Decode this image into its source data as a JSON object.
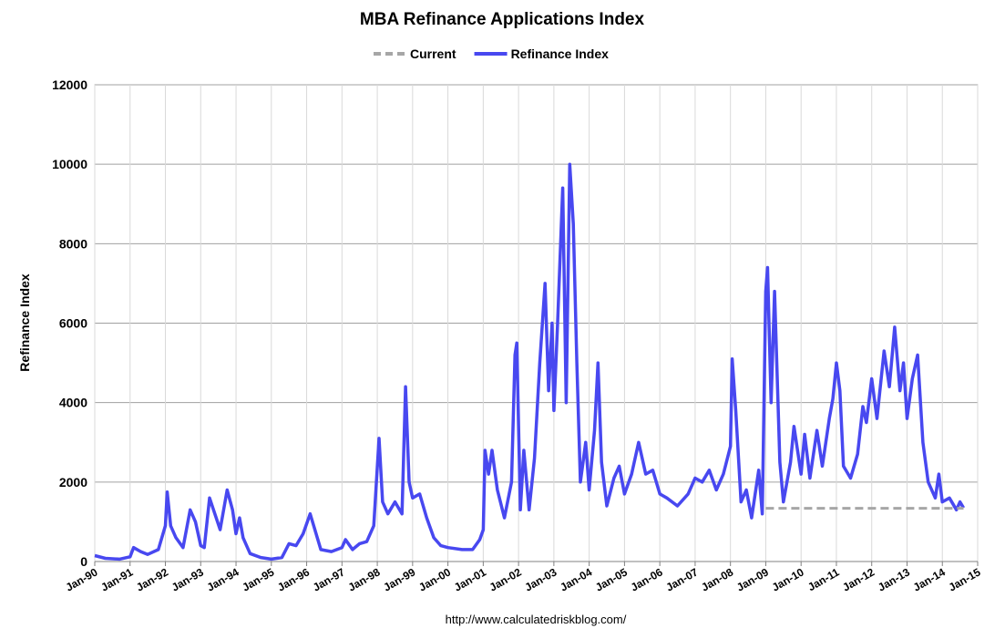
{
  "chart_data": {
    "type": "line",
    "title": "MBA Refinance Applications Index",
    "y_label": "Refinance Index",
    "source": "http://www.calculatedriskblog.com/",
    "xlim": [
      1990,
      2015
    ],
    "xticks": [
      {
        "value": 1990,
        "label": "Jan-90"
      },
      {
        "value": 1991,
        "label": "Jan-91"
      },
      {
        "value": 1992,
        "label": "Jan-92"
      },
      {
        "value": 1993,
        "label": "Jan-93"
      },
      {
        "value": 1994,
        "label": "Jan-94"
      },
      {
        "value": 1995,
        "label": "Jan-95"
      },
      {
        "value": 1996,
        "label": "Jan-96"
      },
      {
        "value": 1997,
        "label": "Jan-97"
      },
      {
        "value": 1998,
        "label": "Jan-98"
      },
      {
        "value": 1999,
        "label": "Jan-99"
      },
      {
        "value": 2000,
        "label": "Jan-00"
      },
      {
        "value": 2001,
        "label": "Jan-01"
      },
      {
        "value": 2002,
        "label": "Jan-02"
      },
      {
        "value": 2003,
        "label": "Jan-03"
      },
      {
        "value": 2004,
        "label": "Jan-04"
      },
      {
        "value": 2005,
        "label": "Jan-05"
      },
      {
        "value": 2006,
        "label": "Jan-06"
      },
      {
        "value": 2007,
        "label": "Jan-07"
      },
      {
        "value": 2008,
        "label": "Jan-08"
      },
      {
        "value": 2009,
        "label": "Jan-09"
      },
      {
        "value": 2010,
        "label": "Jan-10"
      },
      {
        "value": 2011,
        "label": "Jan-11"
      },
      {
        "value": 2012,
        "label": "Jan-12"
      },
      {
        "value": 2013,
        "label": "Jan-13"
      },
      {
        "value": 2014,
        "label": "Jan-14"
      },
      {
        "value": 2015,
        "label": "Jan-15"
      }
    ],
    "ylim": [
      0,
      12000
    ],
    "yticks": [
      0,
      2000,
      4000,
      6000,
      8000,
      10000,
      12000
    ],
    "grid": true,
    "legend": "top",
    "series": [
      {
        "name": "Current",
        "color": "#a6a6a6",
        "dashed": true,
        "x": [
          2009,
          2014.6
        ],
        "values": [
          1340,
          1340
        ]
      },
      {
        "name": "Refinance Index",
        "color": "#4848f0",
        "dashed": false,
        "x": [
          1990.0,
          1990.3,
          1990.7,
          1991.0,
          1991.1,
          1991.3,
          1991.5,
          1991.8,
          1992.0,
          1992.05,
          1992.15,
          1992.3,
          1992.5,
          1992.7,
          1992.85,
          1993.0,
          1993.1,
          1993.25,
          1993.4,
          1993.55,
          1993.75,
          1993.9,
          1994.0,
          1994.1,
          1994.2,
          1994.4,
          1994.7,
          1995.0,
          1995.3,
          1995.5,
          1995.7,
          1995.9,
          1996.1,
          1996.2,
          1996.4,
          1996.7,
          1997.0,
          1997.1,
          1997.3,
          1997.5,
          1997.7,
          1997.9,
          1998.05,
          1998.15,
          1998.3,
          1998.5,
          1998.7,
          1998.8,
          1998.9,
          1999.0,
          1999.2,
          1999.4,
          1999.6,
          1999.8,
          2000.0,
          2000.4,
          2000.7,
          2000.9,
          2001.0,
          2001.05,
          2001.15,
          2001.25,
          2001.4,
          2001.6,
          2001.8,
          2001.9,
          2001.95,
          2002.05,
          2002.15,
          2002.3,
          2002.45,
          2002.6,
          2002.75,
          2002.85,
          2002.95,
          2003.0,
          2003.1,
          2003.25,
          2003.35,
          2003.45,
          2003.55,
          2003.65,
          2003.75,
          2003.9,
          2004.0,
          2004.15,
          2004.25,
          2004.35,
          2004.5,
          2004.7,
          2004.85,
          2005.0,
          2005.2,
          2005.4,
          2005.6,
          2005.8,
          2006.0,
          2006.2,
          2006.5,
          2006.8,
          2007.0,
          2007.2,
          2007.4,
          2007.6,
          2007.8,
          2008.0,
          2008.05,
          2008.15,
          2008.3,
          2008.45,
          2008.6,
          2008.8,
          2008.9,
          2009.0,
          2009.05,
          2009.15,
          2009.25,
          2009.4,
          2009.5,
          2009.7,
          2009.8,
          2010.0,
          2010.1,
          2010.25,
          2010.45,
          2010.6,
          2010.8,
          2010.9,
          2011.0,
          2011.1,
          2011.2,
          2011.4,
          2011.6,
          2011.75,
          2011.85,
          2012.0,
          2012.15,
          2012.35,
          2012.5,
          2012.65,
          2012.8,
          2012.9,
          2013.0,
          2013.15,
          2013.3,
          2013.45,
          2013.6,
          2013.8,
          2013.9,
          2014.0,
          2014.2,
          2014.4,
          2014.5,
          2014.6
        ],
        "values": [
          150,
          80,
          60,
          120,
          350,
          250,
          180,
          300,
          900,
          1750,
          900,
          600,
          350,
          1300,
          1000,
          400,
          350,
          1600,
          1200,
          800,
          1800,
          1300,
          700,
          1100,
          600,
          200,
          100,
          60,
          100,
          450,
          400,
          700,
          1200,
          900,
          300,
          250,
          350,
          550,
          300,
          450,
          500,
          900,
          3100,
          1500,
          1200,
          1500,
          1200,
          4400,
          2000,
          1600,
          1700,
          1100,
          600,
          400,
          350,
          300,
          300,
          550,
          800,
          2800,
          2200,
          2800,
          1800,
          1100,
          2000,
          5200,
          5500,
          1300,
          2800,
          1300,
          2600,
          5000,
          7000,
          4300,
          6000,
          3800,
          5900,
          9400,
          4000,
          10000,
          8500,
          5000,
          2000,
          3000,
          1800,
          3300,
          5000,
          2500,
          1400,
          2100,
          2400,
          1700,
          2200,
          3000,
          2200,
          2300,
          1700,
          1600,
          1400,
          1700,
          2100,
          2000,
          2300,
          1800,
          2200,
          2900,
          5100,
          3800,
          1500,
          1800,
          1100,
          2300,
          1200,
          6800,
          7400,
          4000,
          6800,
          2500,
          1500,
          2500,
          3400,
          2200,
          3200,
          2100,
          3300,
          2400,
          3600,
          4100,
          5000,
          4300,
          2400,
          2100,
          2700,
          3900,
          3500,
          4600,
          3600,
          5300,
          4400,
          5900,
          4300,
          5000,
          3600,
          4600,
          5200,
          3000,
          2000,
          1600,
          2200,
          1500,
          1600,
          1300,
          1500,
          1350
        ]
      }
    ]
  }
}
